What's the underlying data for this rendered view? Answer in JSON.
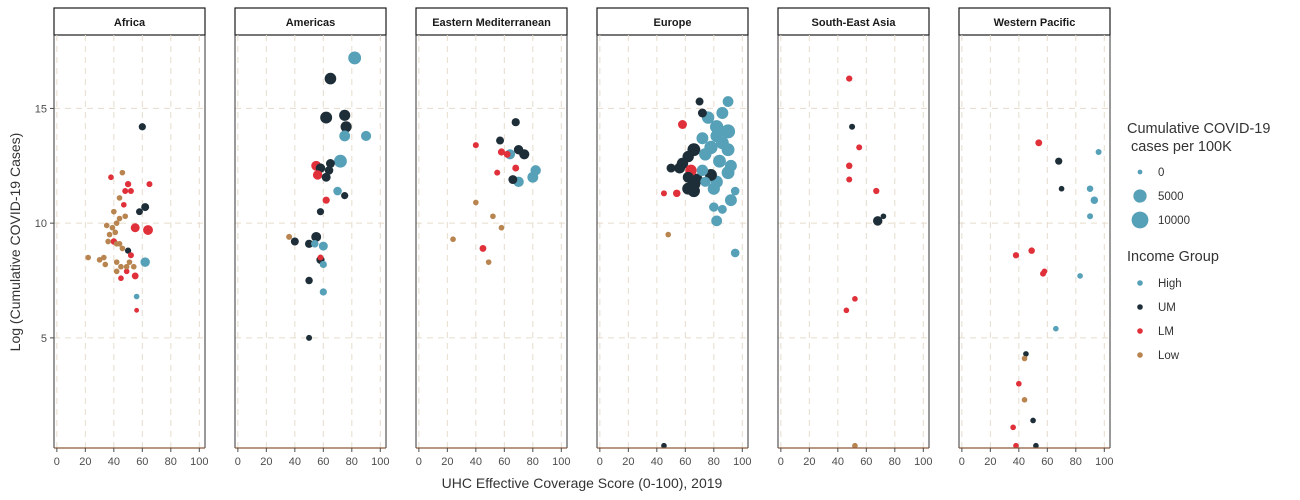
{
  "chart_data": {
    "type": "scatter",
    "xlabel": "UHC Effective Coverage Score (0-100), 2019",
    "ylabel": "Log (Cumulative COVID-19 Cases)",
    "xlim": [
      -2,
      104
    ],
    "ylim": [
      0.2,
      18.2
    ],
    "x_ticks": [
      "0",
      "20",
      "40",
      "60",
      "80",
      "100"
    ],
    "x_tick_values": [
      0,
      20,
      40,
      60,
      80,
      100
    ],
    "y_ticks": [
      "5",
      "10",
      "15"
    ],
    "y_tick_values": [
      5,
      10,
      15
    ],
    "gridlines": true,
    "legend_position": "right",
    "income_colors": {
      "High": "#56A0B8",
      "UM": "#1E2E38",
      "LM": "#E0303A",
      "Low": "#B8844F"
    },
    "size_legend": {
      "title": "Cumulative COVID-19\n cases per 100K",
      "entries": [
        {
          "label": "0",
          "value": 0
        },
        {
          "label": "5000",
          "value": 5000
        },
        {
          "label": "10000",
          "value": 10000
        }
      ]
    },
    "color_legend": {
      "title": "Income Group",
      "entries": [
        "High",
        "UM",
        "LM",
        "Low"
      ]
    },
    "panels": [
      {
        "region": "Africa",
        "points": [
          [
            60,
            14.2,
            "UM",
            400
          ],
          [
            62,
            10.7,
            "UM",
            700
          ],
          [
            58,
            10.5,
            "UM",
            300
          ],
          [
            62,
            8.3,
            "High",
            1500
          ],
          [
            64,
            9.7,
            "LM",
            1800
          ],
          [
            55,
            9.8,
            "LM",
            1200
          ],
          [
            50,
            11.7,
            "LM",
            150
          ],
          [
            48,
            11.4,
            "LM",
            100
          ],
          [
            52,
            11.4,
            "LM",
            100
          ],
          [
            65,
            11.7,
            "LM",
            100
          ],
          [
            38,
            12.0,
            "LM",
            50
          ],
          [
            47,
            10.8,
            "LM",
            50
          ],
          [
            40,
            9.2,
            "LM",
            200
          ],
          [
            52,
            8.6,
            "LM",
            100
          ],
          [
            45,
            7.6,
            "LM",
            50
          ],
          [
            49,
            7.9,
            "LM",
            50
          ],
          [
            55,
            7.7,
            "LM",
            300
          ],
          [
            56,
            6.2,
            "LM",
            0
          ],
          [
            56,
            6.8,
            "High",
            50
          ],
          [
            50,
            8.8,
            "UM",
            150
          ],
          [
            46,
            12.2,
            "Low",
            50
          ],
          [
            44,
            11.1,
            "Low",
            50
          ],
          [
            40,
            10.5,
            "Low",
            50
          ],
          [
            42,
            10.0,
            "Low",
            50
          ],
          [
            44,
            10.2,
            "Low",
            50
          ],
          [
            48,
            10.3,
            "Low",
            50
          ],
          [
            35,
            9.9,
            "Low",
            50
          ],
          [
            39,
            9.8,
            "Low",
            50
          ],
          [
            41,
            9.6,
            "Low",
            50
          ],
          [
            37,
            9.5,
            "Low",
            50
          ],
          [
            36,
            9.2,
            "Low",
            50
          ],
          [
            42,
            9.1,
            "Low",
            50
          ],
          [
            44,
            9.1,
            "Low",
            50
          ],
          [
            46,
            8.9,
            "Low",
            50
          ],
          [
            22,
            8.5,
            "Low",
            50
          ],
          [
            30,
            8.4,
            "Low",
            50
          ],
          [
            33,
            8.5,
            "Low",
            50
          ],
          [
            34,
            8.2,
            "Low",
            50
          ],
          [
            42,
            8.3,
            "Low",
            50
          ],
          [
            45,
            8.1,
            "Low",
            50
          ],
          [
            49,
            8.1,
            "Low",
            50
          ],
          [
            42,
            7.9,
            "Low",
            50
          ],
          [
            51,
            8.3,
            "Low",
            50
          ],
          [
            54,
            8.1,
            "Low",
            50
          ]
        ]
      },
      {
        "region": "Americas",
        "points": [
          [
            82,
            17.2,
            "High",
            4500
          ],
          [
            65,
            16.3,
            "UM",
            3200
          ],
          [
            62,
            14.6,
            "UM",
            3500
          ],
          [
            75,
            14.7,
            "UM",
            2800
          ],
          [
            76,
            14.2,
            "UM",
            2800
          ],
          [
            75,
            13.8,
            "High",
            2500
          ],
          [
            90,
            13.8,
            "High",
            2000
          ],
          [
            72,
            12.7,
            "High",
            4500
          ],
          [
            65,
            12.6,
            "UM",
            1200
          ],
          [
            55,
            12.5,
            "LM",
            1800
          ],
          [
            58,
            12.4,
            "UM",
            1500
          ],
          [
            64,
            12.3,
            "UM",
            1000
          ],
          [
            56,
            12.1,
            "LM",
            1500
          ],
          [
            62,
            12.0,
            "UM",
            1200
          ],
          [
            70,
            11.4,
            "High",
            1000
          ],
          [
            75,
            11.2,
            "UM",
            400
          ],
          [
            62,
            11.0,
            "LM",
            400
          ],
          [
            58,
            10.5,
            "UM",
            400
          ],
          [
            55,
            9.4,
            "UM",
            1800
          ],
          [
            54,
            9.1,
            "High",
            500
          ],
          [
            60,
            9.0,
            "High",
            1200
          ],
          [
            50,
            9.1,
            "UM",
            800
          ],
          [
            40,
            9.2,
            "UM",
            700
          ],
          [
            36,
            9.4,
            "Low",
            100
          ],
          [
            58,
            8.5,
            "LM",
            100
          ],
          [
            58,
            8.4,
            "UM",
            800
          ],
          [
            60,
            8.2,
            "High",
            400
          ],
          [
            50,
            7.5,
            "UM",
            500
          ],
          [
            60,
            7.0,
            "High",
            400
          ],
          [
            50,
            5.0,
            "UM",
            100
          ]
        ]
      },
      {
        "region": "Eastern Mediterranean",
        "points": [
          [
            68,
            14.4,
            "UM",
            800
          ],
          [
            57,
            13.6,
            "UM",
            700
          ],
          [
            70,
            13.2,
            "UM",
            1500
          ],
          [
            74,
            13.0,
            "UM",
            2000
          ],
          [
            64,
            13.0,
            "High",
            2000
          ],
          [
            82,
            12.3,
            "High",
            2200
          ],
          [
            58,
            13.1,
            "LM",
            400
          ],
          [
            62,
            13.0,
            "LM",
            300
          ],
          [
            40,
            13.4,
            "LM",
            100
          ],
          [
            68,
            12.4,
            "LM",
            300
          ],
          [
            55,
            12.2,
            "LM",
            100
          ],
          [
            80,
            12.0,
            "High",
            2500
          ],
          [
            66,
            11.9,
            "UM",
            1200
          ],
          [
            70,
            11.8,
            "High",
            2200
          ],
          [
            40,
            10.9,
            "Low",
            50
          ],
          [
            52,
            10.3,
            "Low",
            50
          ],
          [
            58,
            9.8,
            "Low",
            50
          ],
          [
            24,
            9.3,
            "Low",
            50
          ],
          [
            45,
            8.9,
            "LM",
            300
          ],
          [
            49,
            8.3,
            "Low",
            50
          ]
        ]
      },
      {
        "region": "Europe",
        "points": [
          [
            70,
            15.3,
            "UM",
            700
          ],
          [
            90,
            15.3,
            "High",
            2500
          ],
          [
            72,
            14.8,
            "UM",
            1200
          ],
          [
            86,
            14.8,
            "High",
            3500
          ],
          [
            76,
            14.6,
            "High",
            4000
          ],
          [
            58,
            14.3,
            "LM",
            1200
          ],
          [
            82,
            14.2,
            "High",
            5000
          ],
          [
            90,
            14.0,
            "High",
            6000
          ],
          [
            82,
            13.8,
            "High",
            4000
          ],
          [
            72,
            13.7,
            "High",
            3500
          ],
          [
            86,
            13.5,
            "High",
            4500
          ],
          [
            78,
            13.3,
            "High",
            5000
          ],
          [
            90,
            13.2,
            "High",
            4500
          ],
          [
            66,
            13.2,
            "UM",
            4500
          ],
          [
            74,
            13.0,
            "High",
            4000
          ],
          [
            62,
            12.9,
            "UM",
            3000
          ],
          [
            84,
            12.7,
            "High",
            4500
          ],
          [
            58,
            12.6,
            "UM",
            3000
          ],
          [
            92,
            12.5,
            "High",
            3500
          ],
          [
            50,
            12.4,
            "UM",
            1200
          ],
          [
            56,
            12.4,
            "UM",
            2500
          ],
          [
            64,
            12.3,
            "LM",
            3000
          ],
          [
            72,
            12.3,
            "High",
            3000
          ],
          [
            90,
            12.2,
            "High",
            4500
          ],
          [
            78,
            12.1,
            "UM",
            3500
          ],
          [
            62,
            12.0,
            "UM",
            2500
          ],
          [
            68,
            11.9,
            "UM",
            3500
          ],
          [
            82,
            11.8,
            "High",
            4000
          ],
          [
            66,
            11.7,
            "UM",
            4500
          ],
          [
            74,
            11.8,
            "High",
            2000
          ],
          [
            62,
            11.5,
            "UM",
            3500
          ],
          [
            66,
            11.4,
            "UM",
            3800
          ],
          [
            80,
            11.5,
            "High",
            3800
          ],
          [
            95,
            11.4,
            "High",
            1000
          ],
          [
            54,
            11.3,
            "LM",
            500
          ],
          [
            45,
            11.3,
            "LM",
            100
          ],
          [
            92,
            11.0,
            "High",
            3500
          ],
          [
            80,
            10.7,
            "High",
            1500
          ],
          [
            86,
            10.6,
            "High",
            1200
          ],
          [
            82,
            10.1,
            "High",
            2500
          ],
          [
            48,
            9.5,
            "Low",
            50
          ],
          [
            95,
            8.7,
            "High",
            1000
          ],
          [
            45,
            0.3,
            "UM",
            50
          ]
        ]
      },
      {
        "region": "South-East Asia",
        "points": [
          [
            48,
            16.3,
            "LM",
            150
          ],
          [
            50,
            14.2,
            "UM",
            100
          ],
          [
            55,
            13.3,
            "LM",
            100
          ],
          [
            48,
            12.5,
            "LM",
            200
          ],
          [
            48,
            11.9,
            "LM",
            100
          ],
          [
            67,
            11.4,
            "LM",
            150
          ],
          [
            68,
            10.1,
            "UM",
            1500
          ],
          [
            72,
            10.3,
            "UM",
            50
          ],
          [
            52,
            6.7,
            "LM",
            50
          ],
          [
            46,
            6.2,
            "LM",
            50
          ],
          [
            52,
            0.3,
            "Low",
            50
          ]
        ]
      },
      {
        "region": "Western Pacific",
        "points": [
          [
            54,
            13.5,
            "LM",
            300
          ],
          [
            96,
            13.1,
            "High",
            100
          ],
          [
            68,
            12.7,
            "UM",
            400
          ],
          [
            70,
            11.5,
            "UM",
            50
          ],
          [
            90,
            11.5,
            "High",
            200
          ],
          [
            93,
            11.0,
            "High",
            500
          ],
          [
            90,
            10.3,
            "High",
            100
          ],
          [
            49,
            8.8,
            "LM",
            200
          ],
          [
            38,
            8.6,
            "LM",
            150
          ],
          [
            58,
            7.9,
            "LM",
            50
          ],
          [
            57,
            7.8,
            "LM",
            100
          ],
          [
            83,
            7.7,
            "High",
            50
          ],
          [
            66,
            5.4,
            "High",
            50
          ],
          [
            45,
            4.3,
            "UM",
            50
          ],
          [
            44,
            4.1,
            "Low",
            50
          ],
          [
            40,
            3.0,
            "LM",
            50
          ],
          [
            44,
            2.3,
            "Low",
            50
          ],
          [
            50,
            1.4,
            "UM",
            50
          ],
          [
            36,
            1.1,
            "LM",
            50
          ],
          [
            38,
            0.3,
            "LM",
            50
          ],
          [
            52,
            0.3,
            "UM",
            50
          ]
        ]
      }
    ]
  }
}
